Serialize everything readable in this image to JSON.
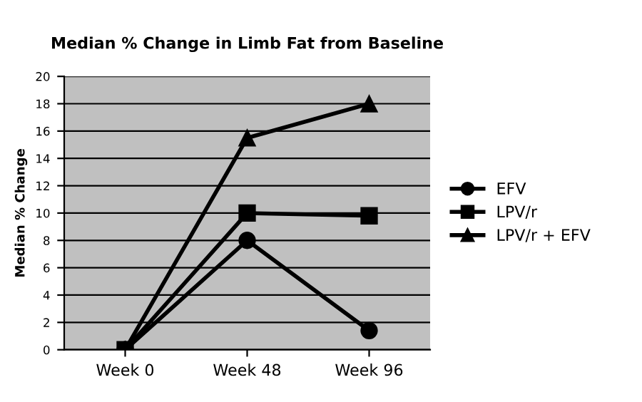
{
  "chart_data": {
    "type": "line",
    "title": "Median % Change in Limb Fat from Baseline",
    "ylabel": "Median % Change",
    "categories": [
      "Week 0",
      "Week 48",
      "Week 96"
    ],
    "series": [
      {
        "name": "EFV",
        "color": "#000000",
        "marker": "circle",
        "values": [
          0,
          8,
          1.4
        ]
      },
      {
        "name": "LPV/r",
        "color": "#000000",
        "marker": "square",
        "values": [
          0,
          10,
          9.8
        ]
      },
      {
        "name": "LPV/r + EFV",
        "color": "#000000",
        "marker": "triangle",
        "values": [
          0,
          15.5,
          18
        ]
      }
    ],
    "ylim": [
      0,
      20
    ],
    "yticks": [
      0,
      2,
      4,
      6,
      8,
      10,
      12,
      14,
      16,
      18,
      20
    ],
    "grid": "y",
    "legend": "right"
  }
}
